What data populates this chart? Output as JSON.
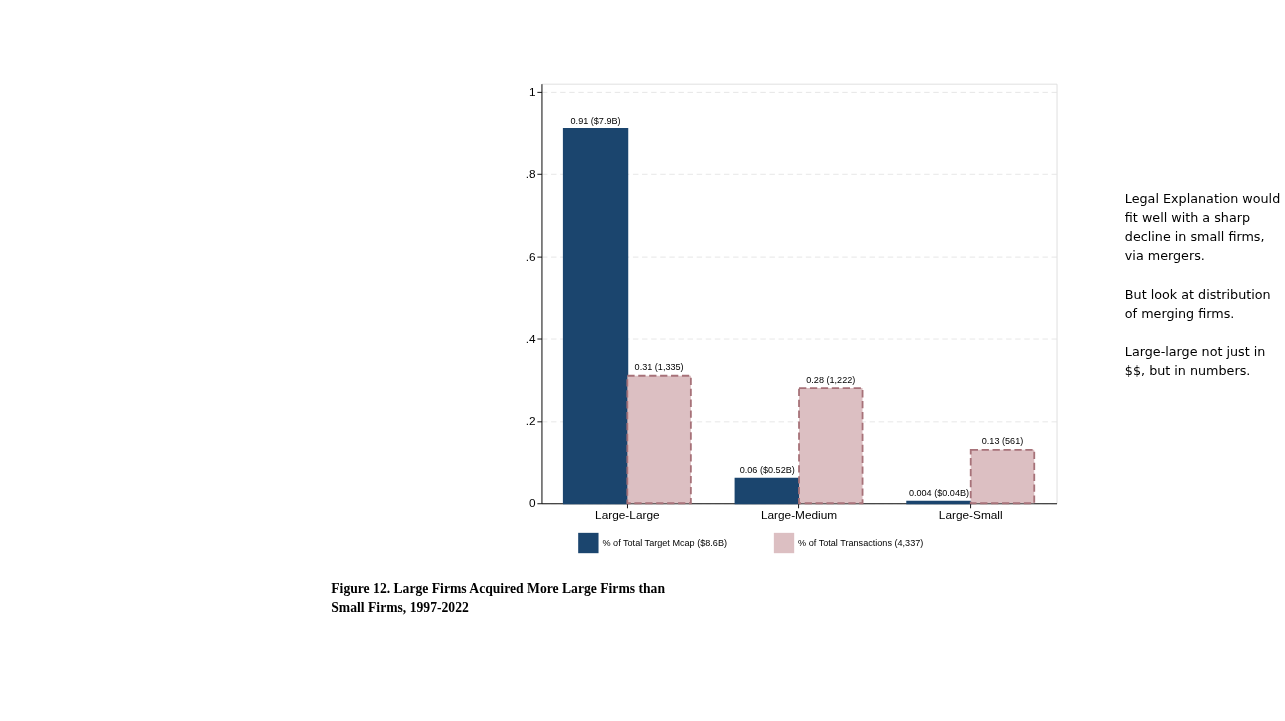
{
  "chart_data": {
    "type": "bar",
    "title": "Figure 12. Large Firms Acquired More Large Firms than Small Firms, 1997-2022",
    "categories": [
      "Large-Large",
      "Large-Medium",
      "Large-Small"
    ],
    "series": [
      {
        "name": "% of Total Target Mcap ($8.6B)",
        "color": "#1b456e",
        "values": [
          0.91,
          0.06,
          0.004
        ],
        "value_labels": [
          "0.91 ($7.9B)",
          "0.06 ($0.52B)",
          "0.004 ($0.04B)"
        ]
      },
      {
        "name": "% of Total Transactions (4,337)",
        "color": "#dcbfc2",
        "line_style": "dashed",
        "values": [
          0.31,
          0.28,
          0.13
        ],
        "value_labels": [
          "0.31 (1,335)",
          "0.28 (1,222)",
          "0.13 (561)"
        ]
      }
    ],
    "ylim": [
      0,
      1.02
    ],
    "yticks": [
      0,
      {
        "value": 0.2,
        "label": ".2"
      },
      {
        "value": 0.4,
        "label": ".4"
      },
      {
        "value": 0.6,
        "label": ".6"
      },
      {
        "value": 0.8,
        "label": ".8"
      },
      1
    ],
    "grid": "y",
    "legend": "bottom",
    "annotations": [
      "Legal Explanation would fit well with a sharp decline in small firms, via mergers.",
      "But look at distribution of merging firms.",
      "Large-large not just in $$, but in numbers."
    ]
  }
}
